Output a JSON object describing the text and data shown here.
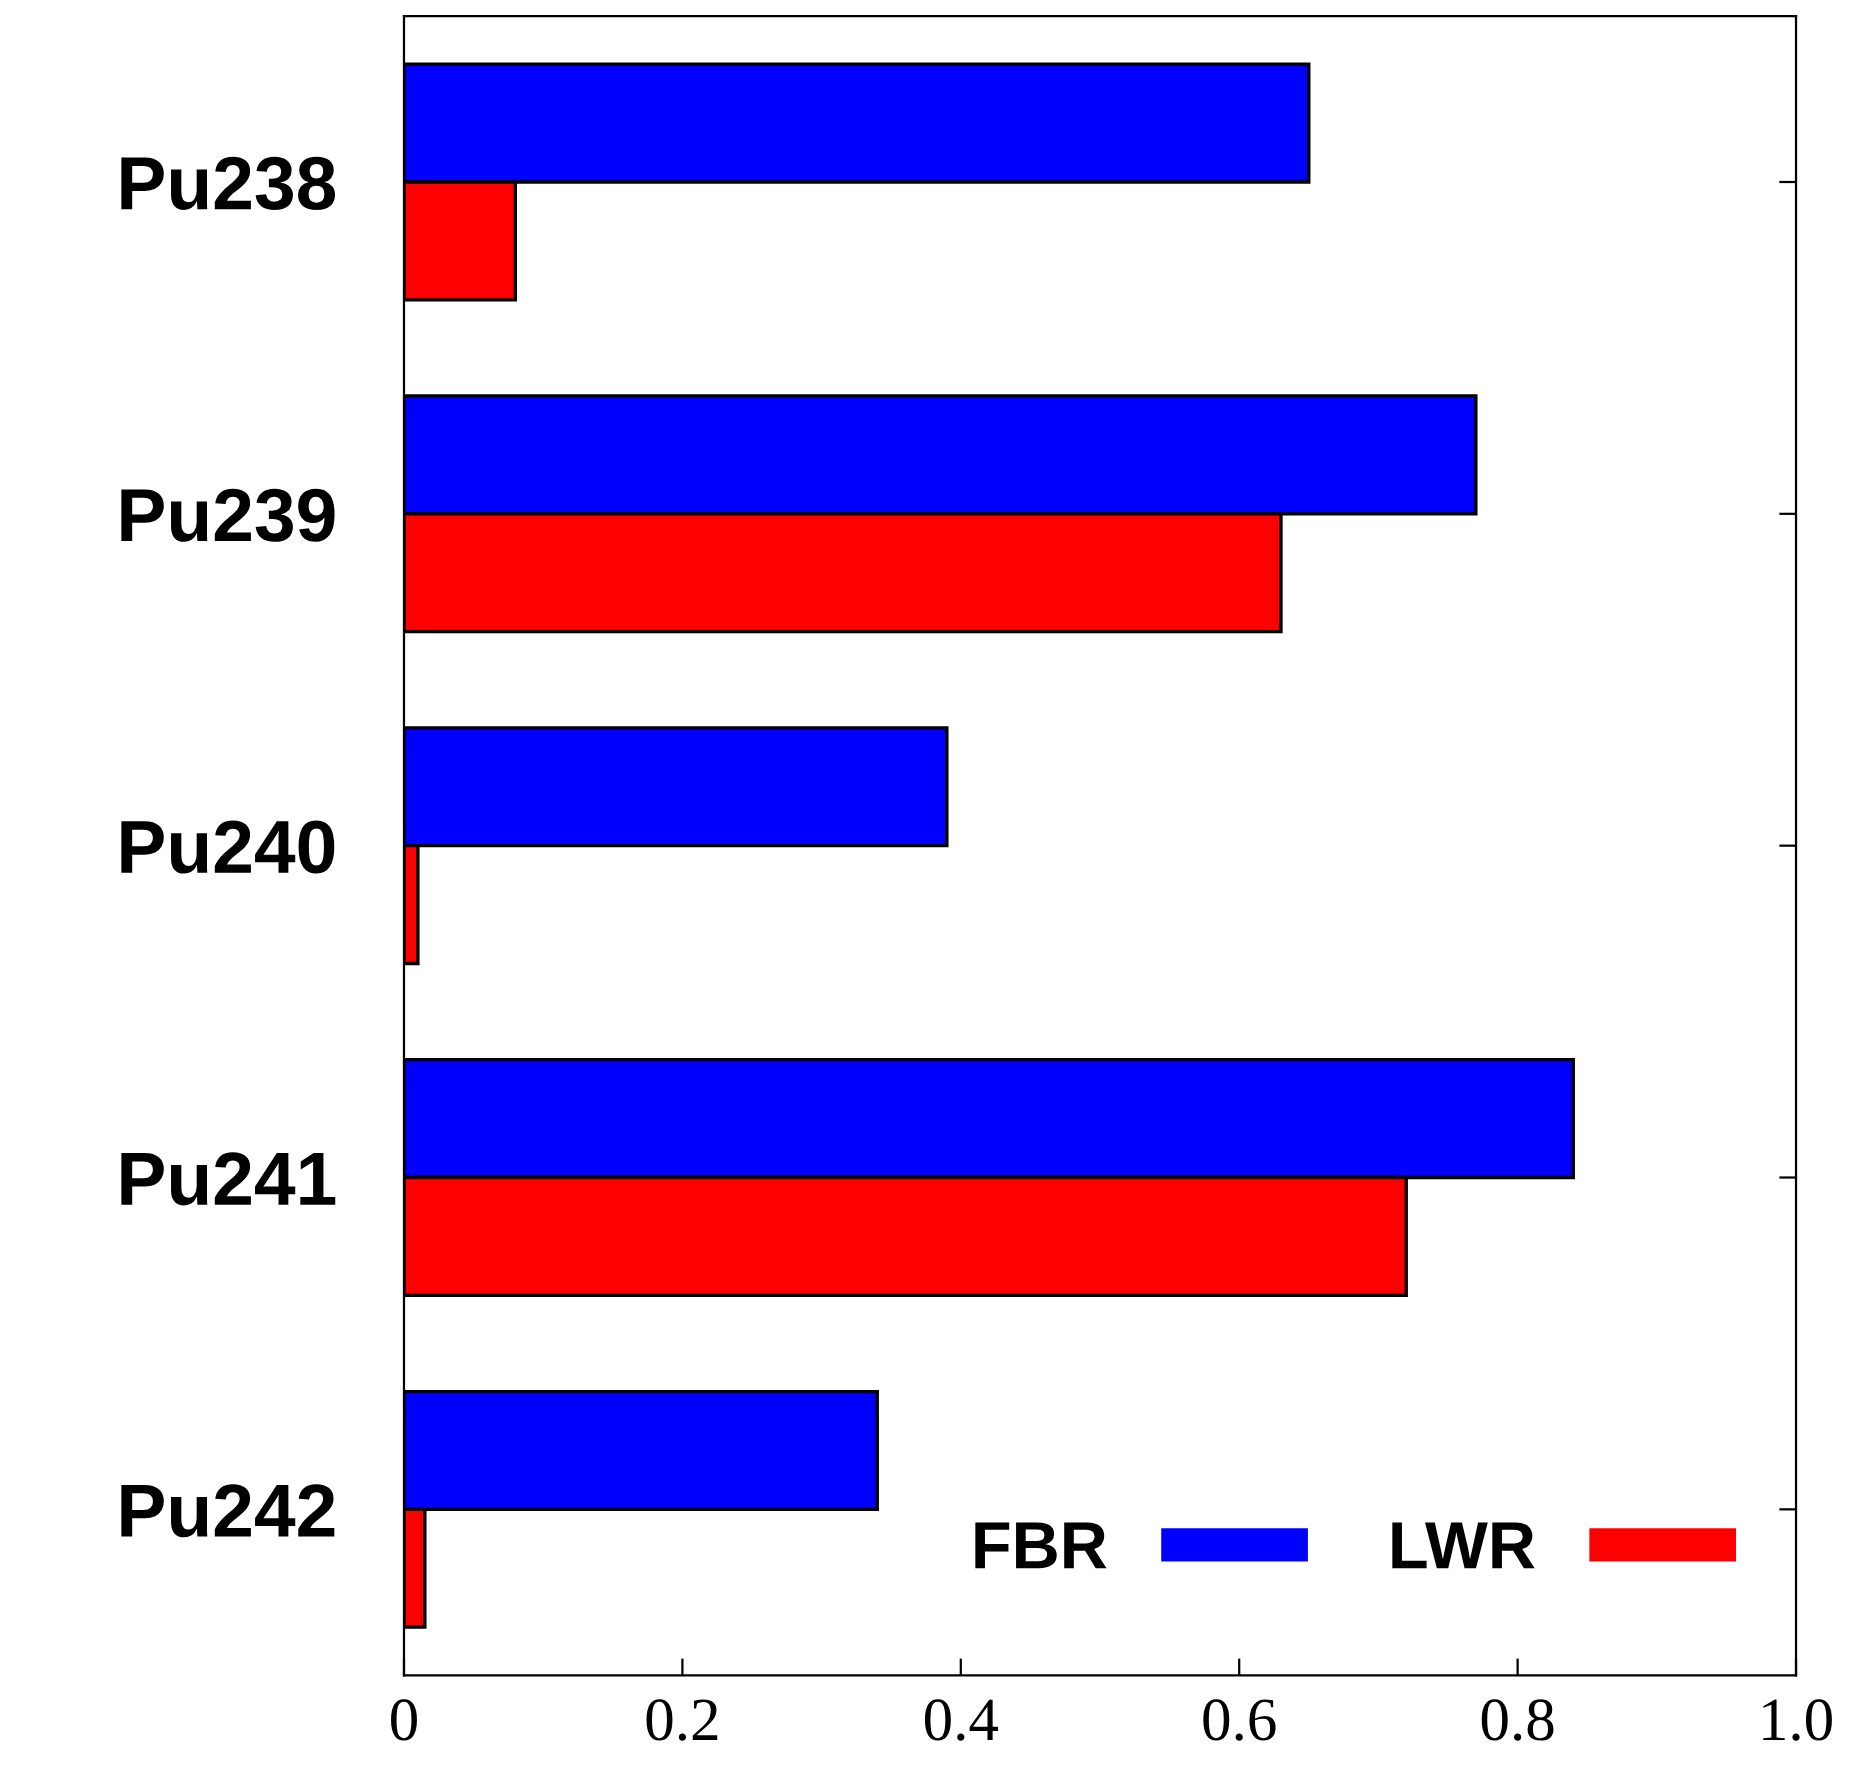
{
  "chart_data": {
    "type": "bar",
    "orientation": "horizontal",
    "categories": [
      "Pu238",
      "Pu239",
      "Pu240",
      "Pu241",
      "Pu242"
    ],
    "series": [
      {
        "name": "FBR",
        "color": "#0000ff",
        "values": [
          0.65,
          0.77,
          0.39,
          0.84,
          0.34
        ]
      },
      {
        "name": "LWR",
        "color": "#ff0000",
        "values": [
          0.08,
          0.63,
          0.01,
          0.72,
          0.015
        ]
      }
    ],
    "xlim": [
      0,
      1.0
    ],
    "xticks": [
      0,
      0.2,
      0.4,
      0.6,
      0.8,
      {
        "value": 1.0,
        "label": "1.0"
      }
    ],
    "grid": false,
    "legend": "bottom right"
  }
}
